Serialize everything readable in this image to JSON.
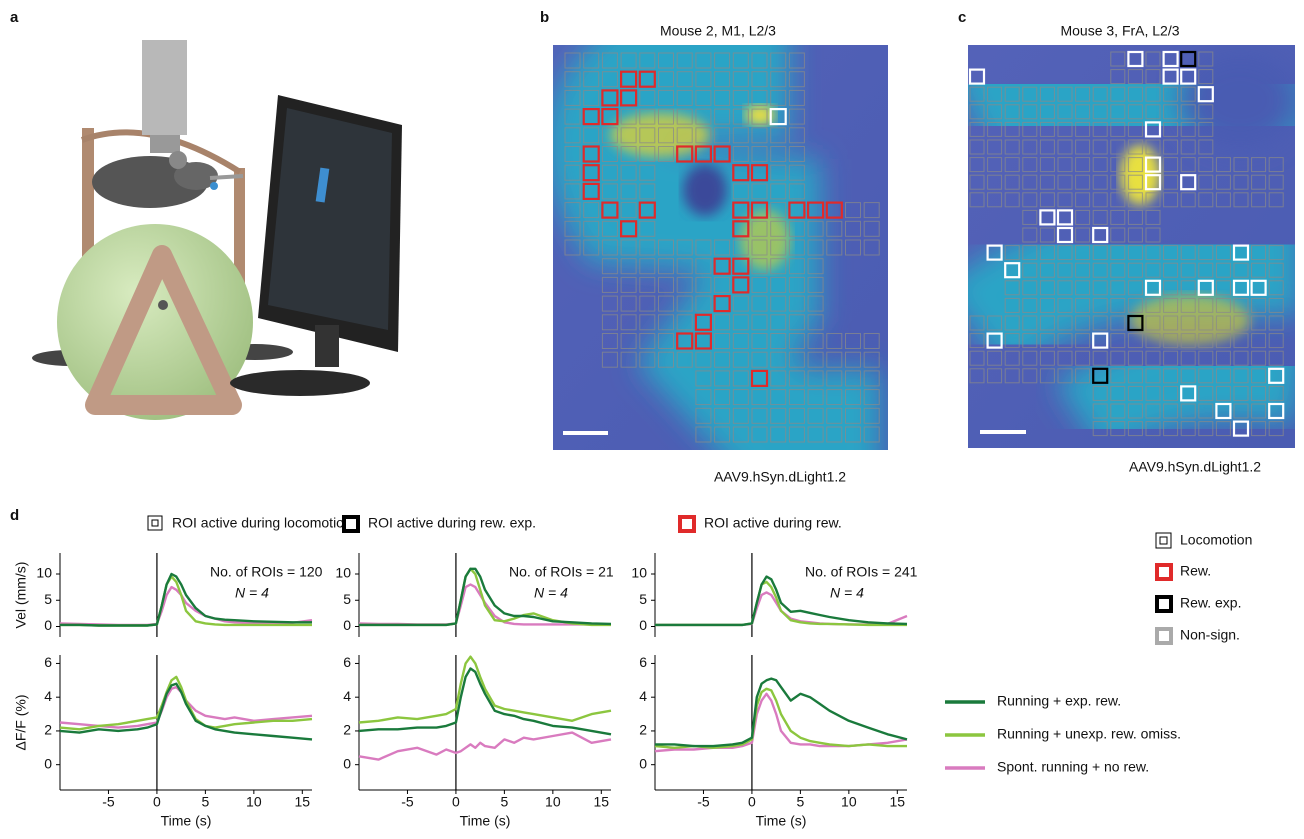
{
  "panels": {
    "a": {
      "label": "a"
    },
    "b": {
      "label": "b",
      "title": "Mouse 2, M1, L2/3",
      "caption": "AAV9.hSyn.dLight1.2"
    },
    "c": {
      "label": "c",
      "title": "Mouse 3, FrA, L2/3",
      "caption": "AAV9.hSyn.dLight1.2"
    },
    "d": {
      "label": "d",
      "headers": [
        "ROI active during locomotion",
        "ROI active during rew. exp.",
        "ROI active during rew."
      ],
      "roi_legend": [
        "Locomotion",
        "Rew.",
        "Rew. exp.",
        "Non-sign."
      ]
    }
  },
  "chart_data": [
    {
      "type": "line",
      "ylabel": "Vel (mm/s)",
      "annotation": "No. of ROIs = 120",
      "n_label": "N = 4",
      "vline": 0,
      "x": [
        -10,
        -8,
        -6,
        -4,
        -2,
        -1,
        0,
        0.5,
        1,
        1.5,
        2,
        2.5,
        3,
        4,
        5,
        6,
        7,
        8,
        10,
        12,
        14,
        16
      ],
      "xlim": [
        -10,
        16
      ],
      "ylim": [
        -2,
        14
      ],
      "yticks": [
        0,
        5,
        10
      ],
      "series": [
        {
          "color": "#1a7a3c",
          "values": [
            0.3,
            0.3,
            0.2,
            0.2,
            0.2,
            0.2,
            0.4,
            4,
            8,
            10,
            9.5,
            8,
            6,
            3.5,
            2,
            1.5,
            1.3,
            1.2,
            1,
            0.9,
            0.8,
            0.8
          ]
        },
        {
          "color": "#8cc63f",
          "values": [
            0.3,
            0.3,
            0.2,
            0.2,
            0.2,
            0.2,
            0.4,
            4,
            8,
            9.5,
            8.5,
            6,
            3,
            1,
            0.6,
            0.4,
            0.3,
            0.3,
            0.3,
            0.3,
            0.3,
            0.3
          ]
        },
        {
          "color": "#d97bbf",
          "values": [
            0.6,
            0.5,
            0.4,
            0.3,
            0.3,
            0.3,
            0.5,
            3,
            6,
            7.5,
            7,
            6,
            4.5,
            3,
            2,
            1.5,
            1,
            0.8,
            0.6,
            0.6,
            0.7,
            1.2
          ]
        }
      ]
    },
    {
      "type": "line",
      "annotation": "No. of ROIs = 21",
      "n_label": "N = 4",
      "vline": 0,
      "x": [
        -10,
        -8,
        -6,
        -4,
        -2,
        -1,
        0,
        0.5,
        1,
        1.5,
        2,
        2.5,
        3,
        4,
        5,
        6,
        7,
        8,
        10,
        12,
        14,
        16
      ],
      "xlim": [
        -10,
        16
      ],
      "ylim": [
        -2,
        14
      ],
      "yticks": [
        0,
        5,
        10
      ],
      "series": [
        {
          "color": "#1a7a3c",
          "values": [
            0.3,
            0.3,
            0.3,
            0.3,
            0.3,
            0.3,
            0.6,
            5,
            9.5,
            11,
            11,
            9.5,
            7,
            4,
            2.5,
            2,
            2,
            1.8,
            1,
            0.8,
            0.6,
            0.5
          ]
        },
        {
          "color": "#8cc63f",
          "values": [
            0.3,
            0.3,
            0.3,
            0.3,
            0.3,
            0.3,
            0.6,
            5,
            9.5,
            11,
            10,
            7,
            4,
            1.2,
            1,
            1.5,
            2.2,
            2.5,
            1.2,
            0.6,
            0.3,
            0.3
          ]
        },
        {
          "color": "#d97bbf",
          "values": [
            0.6,
            0.5,
            0.5,
            0.4,
            0.4,
            0.4,
            0.6,
            4,
            7.5,
            8,
            7.5,
            6,
            4.5,
            2,
            0.8,
            0.5,
            0.4,
            0.4,
            0.4,
            0.4,
            0.4,
            0.4
          ]
        }
      ]
    },
    {
      "type": "line",
      "annotation": "No. of ROIs = 241",
      "n_label": "N = 4",
      "vline": 0,
      "x": [
        -10,
        -8,
        -6,
        -4,
        -2,
        -1,
        0,
        0.5,
        1,
        1.5,
        2,
        2.5,
        3,
        4,
        5,
        6,
        7,
        8,
        10,
        12,
        14,
        16
      ],
      "xlim": [
        -10,
        16
      ],
      "ylim": [
        -2,
        14
      ],
      "yticks": [
        0,
        5,
        10
      ],
      "series": [
        {
          "color": "#1a7a3c",
          "values": [
            0.3,
            0.3,
            0.3,
            0.3,
            0.3,
            0.3,
            0.6,
            4.5,
            8,
            9.5,
            9,
            7,
            4.5,
            2.8,
            3,
            2.6,
            2.2,
            1.8,
            1.2,
            0.8,
            0.6,
            0.5
          ]
        },
        {
          "color": "#8cc63f",
          "values": [
            0.3,
            0.3,
            0.3,
            0.3,
            0.3,
            0.3,
            0.6,
            4.5,
            8,
            8.5,
            7.5,
            5.5,
            3,
            1.2,
            0.8,
            0.6,
            0.5,
            0.5,
            0.4,
            0.3,
            0.3,
            0.3
          ]
        },
        {
          "color": "#d97bbf",
          "values": [
            0.3,
            0.3,
            0.3,
            0.3,
            0.3,
            0.3,
            0.5,
            3.5,
            6,
            6.5,
            6,
            4.5,
            3,
            1.5,
            1,
            0.8,
            0.6,
            0.5,
            0.4,
            0.4,
            0.5,
            2
          ]
        }
      ]
    },
    {
      "type": "line",
      "ylabel": "ΔF/F (%)",
      "xlabel": "Time (s)",
      "vline": 0,
      "x": [
        -10,
        -8,
        -6,
        -4,
        -2,
        -1,
        0,
        0.5,
        1,
        1.5,
        2,
        2.5,
        3,
        4,
        5,
        6,
        7,
        8,
        10,
        12,
        14,
        16
      ],
      "xlim": [
        -10,
        16
      ],
      "xticks": [
        -5,
        0,
        5,
        10,
        15
      ],
      "ylim": [
        -1.5,
        6.5
      ],
      "yticks": [
        0,
        2,
        4,
        6
      ],
      "series": [
        {
          "color": "#1a7a3c",
          "values": [
            2.0,
            1.9,
            2.1,
            2.0,
            2.1,
            2.2,
            2.4,
            3.3,
            4.2,
            4.7,
            4.8,
            4.3,
            3.6,
            2.6,
            2.3,
            2.1,
            2.0,
            1.9,
            1.8,
            1.7,
            1.6,
            1.5
          ]
        },
        {
          "color": "#8cc63f",
          "values": [
            2.2,
            2.1,
            2.3,
            2.4,
            2.6,
            2.7,
            2.8,
            3.5,
            4.3,
            5.0,
            5.2,
            4.6,
            3.8,
            2.7,
            2.3,
            2.2,
            2.3,
            2.4,
            2.5,
            2.6,
            2.6,
            2.7
          ]
        },
        {
          "color": "#d97bbf",
          "values": [
            2.5,
            2.4,
            2.3,
            2.2,
            2.3,
            2.4,
            2.5,
            3.2,
            4.0,
            4.5,
            4.6,
            4.3,
            3.8,
            3.2,
            2.9,
            2.8,
            2.7,
            2.8,
            2.6,
            2.7,
            2.8,
            2.9
          ]
        }
      ]
    },
    {
      "type": "line",
      "xlabel": "Time (s)",
      "vline": 0,
      "x": [
        -10,
        -8,
        -6,
        -4,
        -2,
        -1,
        0,
        0.5,
        1,
        1.5,
        2,
        2.5,
        3,
        4,
        5,
        6,
        7,
        8,
        10,
        12,
        14,
        16
      ],
      "xlim": [
        -10,
        16
      ],
      "xticks": [
        -5,
        0,
        5,
        10,
        15
      ],
      "ylim": [
        -1.5,
        6.5
      ],
      "yticks": [
        0,
        2,
        4,
        6
      ],
      "series": [
        {
          "color": "#1a7a3c",
          "values": [
            2.0,
            2.1,
            2.1,
            2.2,
            2.2,
            2.3,
            2.5,
            4.0,
            5.2,
            5.7,
            5.5,
            4.8,
            4.2,
            3.2,
            3.0,
            2.9,
            2.7,
            2.6,
            2.3,
            2.2,
            2.0,
            1.8
          ]
        },
        {
          "color": "#8cc63f",
          "values": [
            2.5,
            2.6,
            2.8,
            2.7,
            2.9,
            3.0,
            3.3,
            4.8,
            6.0,
            6.4,
            6.0,
            5.2,
            4.5,
            3.5,
            3.3,
            3.2,
            3.1,
            3.0,
            2.8,
            2.6,
            3.0,
            3.2
          ]
        },
        {
          "color": "#d97bbf",
          "values": [
            0.5,
            0.3,
            0.8,
            1.0,
            0.6,
            0.9,
            0.7,
            0.8,
            1.0,
            1.2,
            1.0,
            1.3,
            1.1,
            1.0,
            1.5,
            1.3,
            1.6,
            1.5,
            1.7,
            1.9,
            1.3,
            1.5
          ]
        }
      ]
    },
    {
      "type": "line",
      "xlabel": "Time (s)",
      "vline": 0,
      "x": [
        -10,
        -8,
        -6,
        -4,
        -2,
        -1,
        0,
        0.5,
        1,
        1.5,
        2,
        2.5,
        3,
        4,
        5,
        6,
        7,
        8,
        10,
        12,
        14,
        16
      ],
      "xlim": [
        -10,
        16
      ],
      "xticks": [
        -5,
        0,
        5,
        10,
        15
      ],
      "ylim": [
        -1.5,
        6.5
      ],
      "yticks": [
        0,
        2,
        4,
        6
      ],
      "series": [
        {
          "name": "Running + exp. rew.",
          "color": "#1a7a3c",
          "values": [
            1.2,
            1.2,
            1.1,
            1.1,
            1.2,
            1.3,
            1.6,
            4.0,
            4.8,
            5.0,
            5.1,
            5.0,
            4.6,
            3.8,
            4.2,
            4.0,
            3.6,
            3.2,
            2.6,
            2.2,
            1.8,
            1.5
          ]
        },
        {
          "name": "Running + unexp. rew. omiss.",
          "color": "#8cc63f",
          "values": [
            1.1,
            1.0,
            1.1,
            1.0,
            1.1,
            1.2,
            1.5,
            3.5,
            4.3,
            4.5,
            4.4,
            3.8,
            3.0,
            2.0,
            1.6,
            1.4,
            1.3,
            1.2,
            1.1,
            1.2,
            1.1,
            1.1
          ]
        },
        {
          "name": "Spont. running + no rew.",
          "color": "#d97bbf",
          "values": [
            0.8,
            0.9,
            0.9,
            1.0,
            1.0,
            1.1,
            1.3,
            3.0,
            3.8,
            4.2,
            3.8,
            3.0,
            2.0,
            1.3,
            1.2,
            1.2,
            1.1,
            1.1,
            1.1,
            1.2,
            1.3,
            1.5
          ]
        }
      ]
    }
  ]
}
